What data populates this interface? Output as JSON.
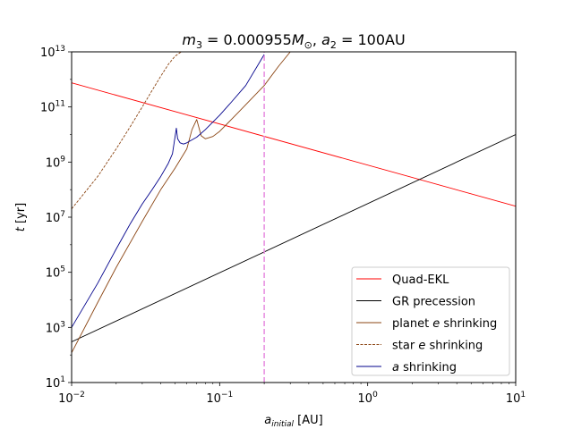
{
  "chart_data": {
    "type": "line",
    "title": "m₃ = 0.000955M☉, a₂ = 100AU",
    "title_parts": {
      "m": "m",
      "m_sub": "3",
      "eq1": " = 0.000955",
      "M": "M",
      "M_sub": "⊙",
      "sep": ", ",
      "a": "a",
      "a_sub": "2",
      "eq2": " = 100AU"
    },
    "xlabel": "a_initial [AU]",
    "xlabel_parts": {
      "var": "a",
      "sub": "initial",
      "unit": " [AU]"
    },
    "ylabel": "t [yr]",
    "ylabel_parts": {
      "var": "t",
      "unit": " [yr]"
    },
    "xscale": "log",
    "yscale": "log",
    "xlim": [
      0.01,
      10
    ],
    "ylim": [
      10,
      10000000000000.0
    ],
    "x_ticks": [
      {
        "value": 0.01,
        "base": "10",
        "exp": "−2"
      },
      {
        "value": 0.1,
        "base": "10",
        "exp": "−1"
      },
      {
        "value": 1,
        "base": "10",
        "exp": "0"
      },
      {
        "value": 10,
        "base": "10",
        "exp": "1"
      }
    ],
    "y_ticks": [
      {
        "value": 10,
        "base": "10",
        "exp": "1"
      },
      {
        "value": 1000,
        "base": "10",
        "exp": "3"
      },
      {
        "value": 100000,
        "base": "10",
        "exp": "5"
      },
      {
        "value": 10000000,
        "base": "10",
        "exp": "7"
      },
      {
        "value": 1000000000,
        "base": "10",
        "exp": "9"
      },
      {
        "value": 100000000000,
        "base": "10",
        "exp": "11"
      },
      {
        "value": 10000000000000,
        "base": "10",
        "exp": "13"
      }
    ],
    "grid": false,
    "legend_position": "lower-right",
    "series": [
      {
        "name": "Quad-EKL",
        "legend_parts": {
          "pre": "Quad-EKL",
          "var": "",
          "post": ""
        },
        "color": "#ff0000",
        "dash": "solid",
        "x": [
          0.01,
          10
        ],
        "y": [
          750000000000.0,
          25000000.0
        ]
      },
      {
        "name": "GR precession",
        "legend_parts": {
          "pre": "GR precession",
          "var": "",
          "post": ""
        },
        "color": "#000000",
        "dash": "solid",
        "x": [
          0.01,
          10
        ],
        "y": [
          300,
          10000000000.0
        ]
      },
      {
        "name": "planet e shrinking",
        "legend_parts": {
          "pre": "planet ",
          "var": "e",
          "post": " shrinking"
        },
        "color": "#8b4513",
        "dash": "solid",
        "x": [
          0.01,
          0.015,
          0.02,
          0.03,
          0.04,
          0.05,
          0.06,
          0.065,
          0.07,
          0.075,
          0.08,
          0.09,
          0.1,
          0.12,
          0.15,
          0.2,
          0.25,
          0.3
        ],
        "y": [
          120,
          8000,
          150000,
          7000000,
          100000000,
          600000000,
          3000000000,
          15000000000.0,
          35000000000.0,
          9000000000,
          7000000000,
          8500000000,
          13000000000.0,
          35000000000.0,
          120000000000.0,
          600000000000.0,
          3000000000000.0,
          10000000000000.0
        ]
      },
      {
        "name": "star e shrinking",
        "legend_parts": {
          "pre": "star ",
          "var": "e",
          "post": " shrinking"
        },
        "color": "#8b4513",
        "dash": "dashed",
        "x": [
          0.01,
          0.015,
          0.02,
          0.025,
          0.03,
          0.035,
          0.04,
          0.045,
          0.05,
          0.055
        ],
        "y": [
          20000000,
          300000000,
          3000000000,
          20000000000.0,
          100000000000.0,
          400000000000.0,
          1300000000000.0,
          3500000000000.0,
          7000000000000.0,
          10000000000000.0
        ]
      },
      {
        "name": "a shrinking",
        "legend_parts": {
          "pre": "",
          "var": "a",
          "post": " shrinking"
        },
        "color": "#00008b",
        "dash": "solid",
        "x": [
          0.01,
          0.015,
          0.02,
          0.025,
          0.03,
          0.035,
          0.04,
          0.045,
          0.048,
          0.051,
          0.052,
          0.054,
          0.057,
          0.06,
          0.07,
          0.08,
          0.1,
          0.12,
          0.15,
          0.2
        ],
        "y": [
          1000,
          40000,
          700000,
          6000000,
          30000000,
          100000000,
          300000000,
          900000000,
          2000000000,
          17000000000.0,
          7000000000,
          5000000000,
          4500000000,
          5000000000,
          8000000000,
          15000000000.0,
          50000000000.0,
          150000000000.0,
          600000000000.0,
          8000000000000.0
        ]
      },
      {
        "name": "",
        "legend_parts": null,
        "color": "#e78ce0",
        "dash": "dashed",
        "x": [
          0.2,
          0.2
        ],
        "y": [
          10,
          10000000000000.0
        ]
      }
    ]
  }
}
